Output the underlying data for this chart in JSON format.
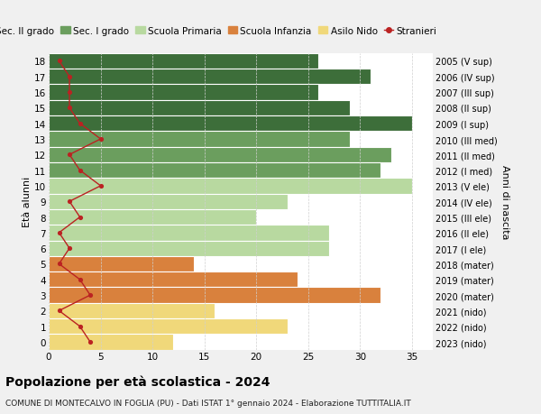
{
  "ages": [
    18,
    17,
    16,
    15,
    14,
    13,
    12,
    11,
    10,
    9,
    8,
    7,
    6,
    5,
    4,
    3,
    2,
    1,
    0
  ],
  "years": [
    "2005 (V sup)",
    "2006 (IV sup)",
    "2007 (III sup)",
    "2008 (II sup)",
    "2009 (I sup)",
    "2010 (III med)",
    "2011 (II med)",
    "2012 (I med)",
    "2013 (V ele)",
    "2014 (IV ele)",
    "2015 (III ele)",
    "2016 (II ele)",
    "2017 (I ele)",
    "2018 (mater)",
    "2019 (mater)",
    "2020 (mater)",
    "2021 (nido)",
    "2022 (nido)",
    "2023 (nido)"
  ],
  "bar_values": [
    26,
    31,
    26,
    29,
    35,
    29,
    33,
    32,
    35,
    23,
    20,
    27,
    27,
    14,
    24,
    32,
    16,
    23,
    12
  ],
  "bar_colors": [
    "#3d6e3a",
    "#3d6e3a",
    "#3d6e3a",
    "#3d6e3a",
    "#3d6e3a",
    "#6b9e5e",
    "#6b9e5e",
    "#6b9e5e",
    "#b8d9a0",
    "#b8d9a0",
    "#b8d9a0",
    "#b8d9a0",
    "#b8d9a0",
    "#d9813d",
    "#d9813d",
    "#d9813d",
    "#f0d87a",
    "#f0d87a",
    "#f0d87a"
  ],
  "stranieri": [
    1,
    2,
    2,
    2,
    3,
    5,
    2,
    3,
    5,
    2,
    3,
    1,
    2,
    1,
    3,
    4,
    1,
    3,
    4
  ],
  "legend_labels": [
    "Sec. II grado",
    "Sec. I grado",
    "Scuola Primaria",
    "Scuola Infanzia",
    "Asilo Nido",
    "Stranieri"
  ],
  "legend_colors": [
    "#3d6e3a",
    "#6b9e5e",
    "#b8d9a0",
    "#d9813d",
    "#f0d87a",
    "#bb2222"
  ],
  "title": "Popolazione per età scolastica - 2024",
  "subtitle": "COMUNE DI MONTECALVO IN FOGLIA (PU) - Dati ISTAT 1° gennaio 2024 - Elaborazione TUTTITALIA.IT",
  "ylabel": "Età alunni",
  "ylabel2": "Anni di nascita",
  "xlim": [
    0,
    37
  ],
  "bg_color": "#f0f0f0",
  "plot_bg_color": "#ffffff",
  "grid_color": "#d0d0d0",
  "separator_color": "#ffffff"
}
